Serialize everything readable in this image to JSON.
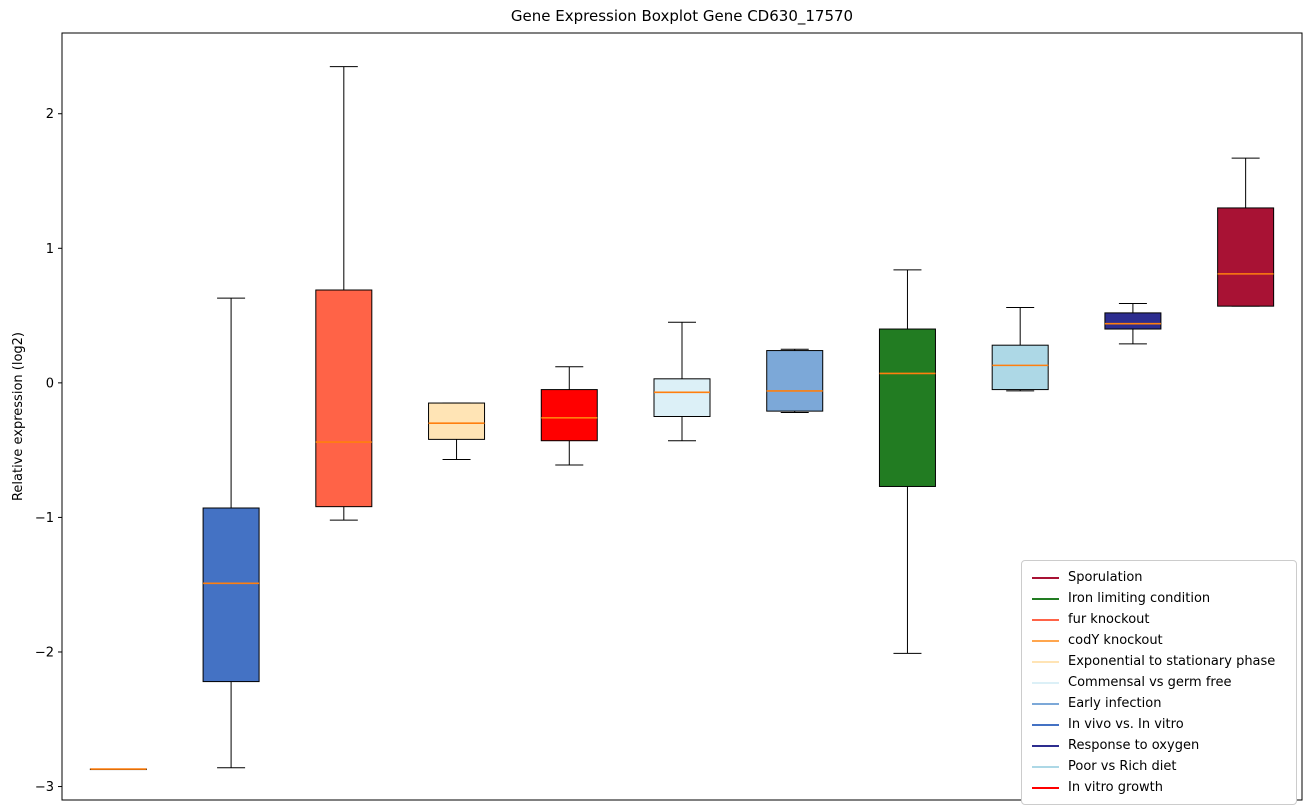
{
  "chart_data": {
    "type": "boxplot",
    "title": "Gene Expression Boxplot Gene CD630_17570",
    "ylabel": "Relative expression (log2)",
    "ylim": [
      -3.1,
      2.6
    ],
    "yticks": [
      -3,
      -2,
      -1,
      0,
      1,
      2
    ],
    "grid": false,
    "legend_position": "lower right",
    "median_color": "#ff7f0e",
    "box_edge_color": "#000000",
    "groups": [
      {
        "label": "codY knockout",
        "color": "#FFA64E",
        "whislo": -2.87,
        "q1": -2.87,
        "med": -2.87,
        "q3": -2.87,
        "whishi": -2.87
      },
      {
        "label": "In vivo vs. In vitro",
        "color": "#4472C4",
        "whislo": -2.86,
        "q1": -2.22,
        "med": -1.49,
        "q3": -0.93,
        "whishi": 0.63
      },
      {
        "label": "fur knockout",
        "color": "#FF6347",
        "whislo": -1.02,
        "q1": -0.92,
        "med": -0.44,
        "q3": 0.69,
        "whishi": 2.35
      },
      {
        "label": "Exponential to stationary phase",
        "color": "#FFE4B5",
        "whislo": -0.57,
        "q1": -0.42,
        "med": -0.3,
        "q3": -0.15,
        "whishi": -0.15
      },
      {
        "label": "In vitro growth",
        "color": "#FF0000",
        "whislo": -0.61,
        "q1": -0.43,
        "med": -0.26,
        "q3": -0.05,
        "whishi": 0.12
      },
      {
        "label": "Commensal vs germ free",
        "color": "#DCF0F7",
        "whislo": -0.43,
        "q1": -0.25,
        "med": -0.07,
        "q3": 0.03,
        "whishi": 0.45
      },
      {
        "label": "Early infection",
        "color": "#7CA8D8",
        "whislo": -0.22,
        "q1": -0.21,
        "med": -0.06,
        "q3": 0.24,
        "whishi": 0.25
      },
      {
        "label": "Iron limiting condition",
        "color": "#227C22",
        "whislo": -2.01,
        "q1": -0.77,
        "med": 0.07,
        "q3": 0.4,
        "whishi": 0.84
      },
      {
        "label": "Poor vs Rich diet",
        "color": "#ADD8E6",
        "whislo": -0.06,
        "q1": -0.05,
        "med": 0.13,
        "q3": 0.28,
        "whishi": 0.56
      },
      {
        "label": "Response to oxygen",
        "color": "#2D2D8F",
        "whislo": 0.29,
        "q1": 0.4,
        "med": 0.44,
        "q3": 0.52,
        "whishi": 0.59
      },
      {
        "label": "Sporulation",
        "color": "#A81234",
        "whislo": 0.57,
        "q1": 0.57,
        "med": 0.81,
        "q3": 1.3,
        "whishi": 1.67
      }
    ],
    "legend": [
      {
        "label": "Sporulation",
        "color": "#A81234"
      },
      {
        "label": "Iron limiting condition",
        "color": "#227C22"
      },
      {
        "label": "fur knockout",
        "color": "#FF6347"
      },
      {
        "label": "codY knockout",
        "color": "#FFA64E"
      },
      {
        "label": "Exponential to stationary phase",
        "color": "#FFE4B5"
      },
      {
        "label": "Commensal vs germ free",
        "color": "#DCF0F7"
      },
      {
        "label": "Early infection",
        "color": "#7CA8D8"
      },
      {
        "label": "In vivo vs. In vitro",
        "color": "#4472C4"
      },
      {
        "label": "Response to oxygen",
        "color": "#2D2D8F"
      },
      {
        "label": "Poor vs Rich diet",
        "color": "#ADD8E6"
      },
      {
        "label": "In vitro growth",
        "color": "#FF0000"
      }
    ]
  }
}
